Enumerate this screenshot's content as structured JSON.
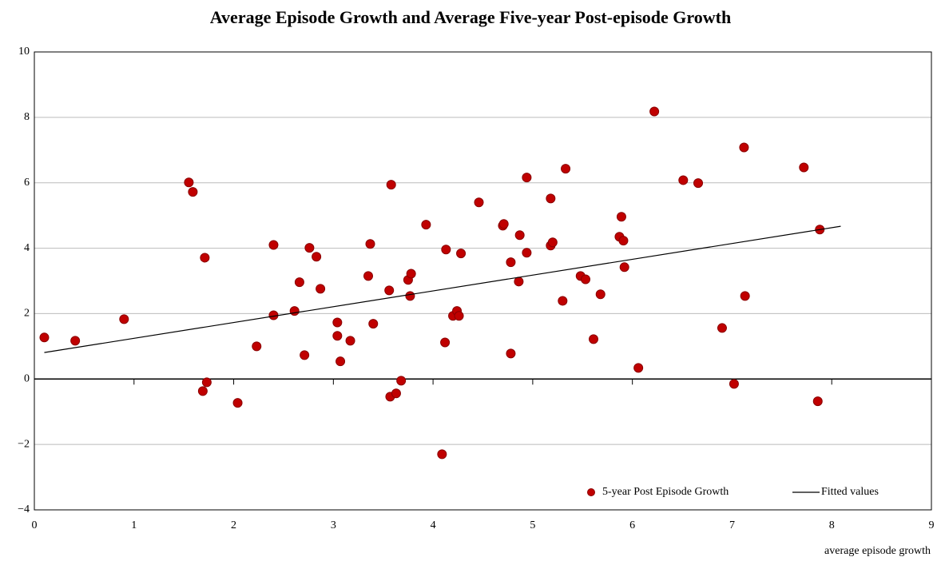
{
  "chart_data": {
    "type": "scatter",
    "title": "Average Episode Growth and Average Five-year Post-episode Growth",
    "x_label": "average episode growth",
    "xlim": [
      0,
      9
    ],
    "ylim": [
      -4,
      10
    ],
    "xticks": [
      0,
      1,
      2,
      3,
      4,
      5,
      6,
      7,
      8,
      9
    ],
    "yticks": [
      {
        "value": -4,
        "label": "−4"
      },
      {
        "value": -2,
        "label": "−2"
      },
      0,
      2,
      4,
      6,
      8,
      10
    ],
    "grid": true,
    "legend": "bottom-right",
    "series": [
      {
        "name": "5-year Post Episode Growth",
        "type": "scatter",
        "color": "#c00000",
        "x": [
          0.1,
          0.41,
          0.9,
          1.55,
          1.59,
          1.71,
          1.69,
          1.73,
          2.04,
          2.23,
          2.4,
          2.4,
          2.61,
          2.66,
          2.71,
          2.76,
          2.83,
          2.87,
          3.04,
          3.04,
          3.07,
          3.17,
          3.35,
          3.37,
          3.4,
          3.56,
          3.58,
          3.57,
          3.63,
          3.68,
          3.75,
          3.78,
          3.77,
          3.93,
          4.09,
          4.12,
          4.13,
          4.2,
          4.24,
          4.26,
          4.28,
          4.46,
          4.7,
          4.71,
          4.78,
          4.78,
          4.86,
          4.87,
          4.94,
          4.94,
          5.18,
          5.18,
          5.2,
          5.3,
          5.33,
          5.48,
          5.53,
          5.61,
          5.68,
          5.89,
          5.87,
          5.91,
          5.92,
          6.06,
          6.22,
          6.51,
          6.66,
          6.9,
          7.02,
          7.12,
          7.13,
          7.72,
          7.88,
          7.86
        ],
        "values": [
          1.27,
          1.17,
          1.83,
          6.01,
          5.72,
          3.71,
          -0.37,
          -0.1,
          -0.73,
          1.0,
          4.1,
          1.95,
          2.08,
          2.96,
          0.73,
          4.01,
          3.74,
          2.76,
          1.32,
          1.73,
          0.54,
          1.17,
          3.15,
          4.13,
          1.69,
          2.71,
          5.94,
          -0.54,
          -0.44,
          -0.05,
          3.03,
          3.22,
          2.54,
          4.72,
          -2.3,
          1.12,
          3.96,
          1.93,
          2.08,
          1.93,
          3.84,
          5.4,
          4.69,
          4.74,
          3.57,
          0.78,
          2.98,
          4.4,
          6.16,
          3.86,
          5.52,
          4.08,
          4.18,
          2.39,
          6.43,
          3.15,
          3.05,
          1.22,
          2.59,
          4.96,
          4.35,
          4.23,
          3.42,
          0.34,
          8.18,
          6.08,
          5.99,
          1.56,
          -0.15,
          7.08,
          2.54,
          6.47,
          4.57,
          -0.68
        ]
      },
      {
        "name": "Fitted values",
        "type": "line",
        "color": "#000000",
        "x": [
          0.1,
          8.09
        ],
        "values": [
          0.81,
          4.67
        ]
      }
    ]
  }
}
